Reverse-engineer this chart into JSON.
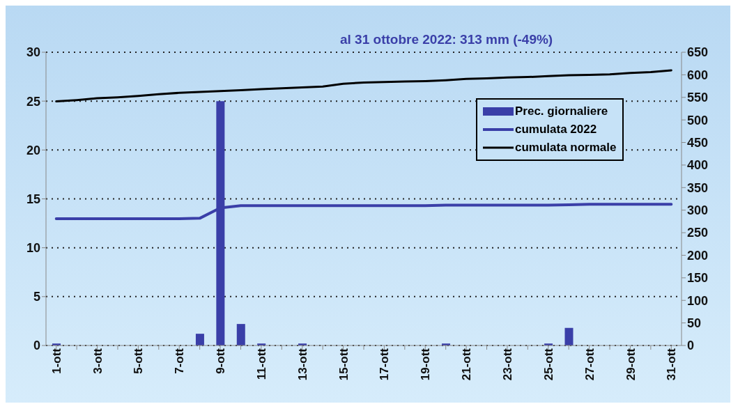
{
  "chart_data": {
    "type": "bar",
    "annotations": [
      "al 31 ottobre 2022: 313 mm (-49%)"
    ],
    "categories": [
      "1-ott",
      null,
      "3-ott",
      null,
      "5-ott",
      null,
      "7-ott",
      null,
      "9-ott",
      null,
      "11-ott",
      null,
      "13-ott",
      null,
      "15-ott",
      null,
      "17-ott",
      null,
      "19-ott",
      null,
      "21-ott",
      null,
      "23-ott",
      null,
      "25-ott",
      null,
      "27-ott",
      null,
      "29-ott",
      null,
      "31-ott"
    ],
    "series": [
      {
        "name": "Prec. giornaliere",
        "color": "#3a3fa8",
        "values": [
          0.2,
          0,
          0,
          0,
          0,
          0,
          0,
          1.2,
          25,
          2.2,
          0.2,
          0,
          0.2,
          0,
          0,
          0,
          0,
          0,
          0,
          0.2,
          0,
          0,
          0,
          0,
          0.2,
          1.8,
          0,
          0,
          0,
          0,
          0
        ]
      },
      {
        "name": "cumulata 2022",
        "type": "line",
        "axis": "y2",
        "color": "#3a3fa8",
        "values": [
          281,
          281,
          281,
          281,
          281,
          281,
          281,
          282,
          305,
          310,
          310,
          310,
          310,
          310,
          310,
          310,
          310,
          310,
          310,
          311,
          311,
          311,
          311,
          311,
          311,
          312,
          313,
          313,
          313,
          313,
          313
        ]
      },
      {
        "name": "cumulata normale",
        "type": "line",
        "axis": "y2",
        "color": "#000000",
        "values": [
          541,
          544,
          548,
          550,
          553,
          557,
          560,
          562,
          564,
          566,
          568,
          570,
          572,
          574,
          580,
          583,
          584,
          585,
          586,
          588,
          591,
          592,
          594,
          595,
          597,
          599,
          600,
          601,
          604,
          606,
          610
        ]
      }
    ],
    "ylim": [
      0,
      30
    ],
    "yticks": [
      0,
      5,
      10,
      15,
      20,
      25,
      30
    ],
    "y2lim": [
      0,
      650
    ],
    "y2ticks": [
      0,
      50,
      100,
      150,
      200,
      250,
      300,
      350,
      400,
      450,
      500,
      550,
      600,
      650
    ],
    "grid": "y",
    "legend": "top right",
    "marker": "none",
    "line_style": "solid"
  }
}
